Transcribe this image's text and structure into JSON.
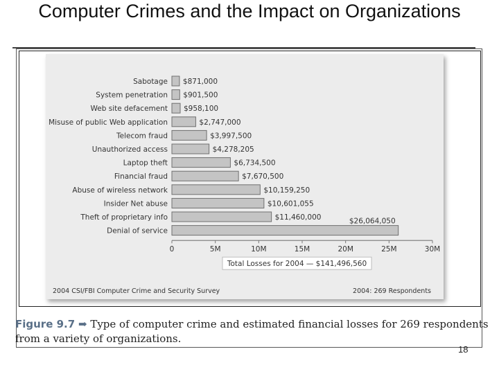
{
  "slide": {
    "title": "Computer Crimes and the Impact on Organizations",
    "page_number": "18"
  },
  "caption": {
    "figure_label": "Figure 9.7",
    "text": "Type of computer crime and estimated financial losses for 269 respondents from a variety of organizations."
  },
  "chart_data": {
    "type": "bar",
    "orientation": "horizontal",
    "categories": [
      "Sabotage",
      "System penetration",
      "Web site defacement",
      "Misuse of public Web application",
      "Telecom fraud",
      "Unauthorized access",
      "Laptop theft",
      "Financial fraud",
      "Abuse of wireless network",
      "Insider Net abuse",
      "Theft of proprietary info",
      "Denial of service"
    ],
    "values": [
      871000,
      901500,
      958100,
      2747000,
      3997500,
      4278205,
      6734500,
      7670500,
      10159250,
      10601055,
      11460000,
      26064050
    ],
    "value_labels": [
      "$871,000",
      "$901,500",
      "$958,100",
      "$2,747,000",
      "$3,997,500",
      "$4,278,205",
      "$6,734,500",
      "$7,670,500",
      "$10,159,250",
      "$10,601,055",
      "$11,460,000",
      "$26,064,050"
    ],
    "xlim": [
      0,
      30000000
    ],
    "xticks": [
      0,
      5000000,
      10000000,
      15000000,
      20000000,
      25000000,
      30000000
    ],
    "xtick_labels": [
      "0",
      "5M",
      "10M",
      "15M",
      "20M",
      "25M",
      "30M"
    ],
    "total_label": "Total Losses for 2004 — $141,496,560",
    "source": "2004 CSI/FBI Computer Crime and Security Survey",
    "respondents": "2004: 269 Respondents",
    "grid": false,
    "colors": {
      "bar_fill": "#c4c4c4",
      "bar_stroke": "#6f6f6f",
      "panel": "#ececec",
      "axis": "#777777",
      "text": "#333333"
    }
  }
}
